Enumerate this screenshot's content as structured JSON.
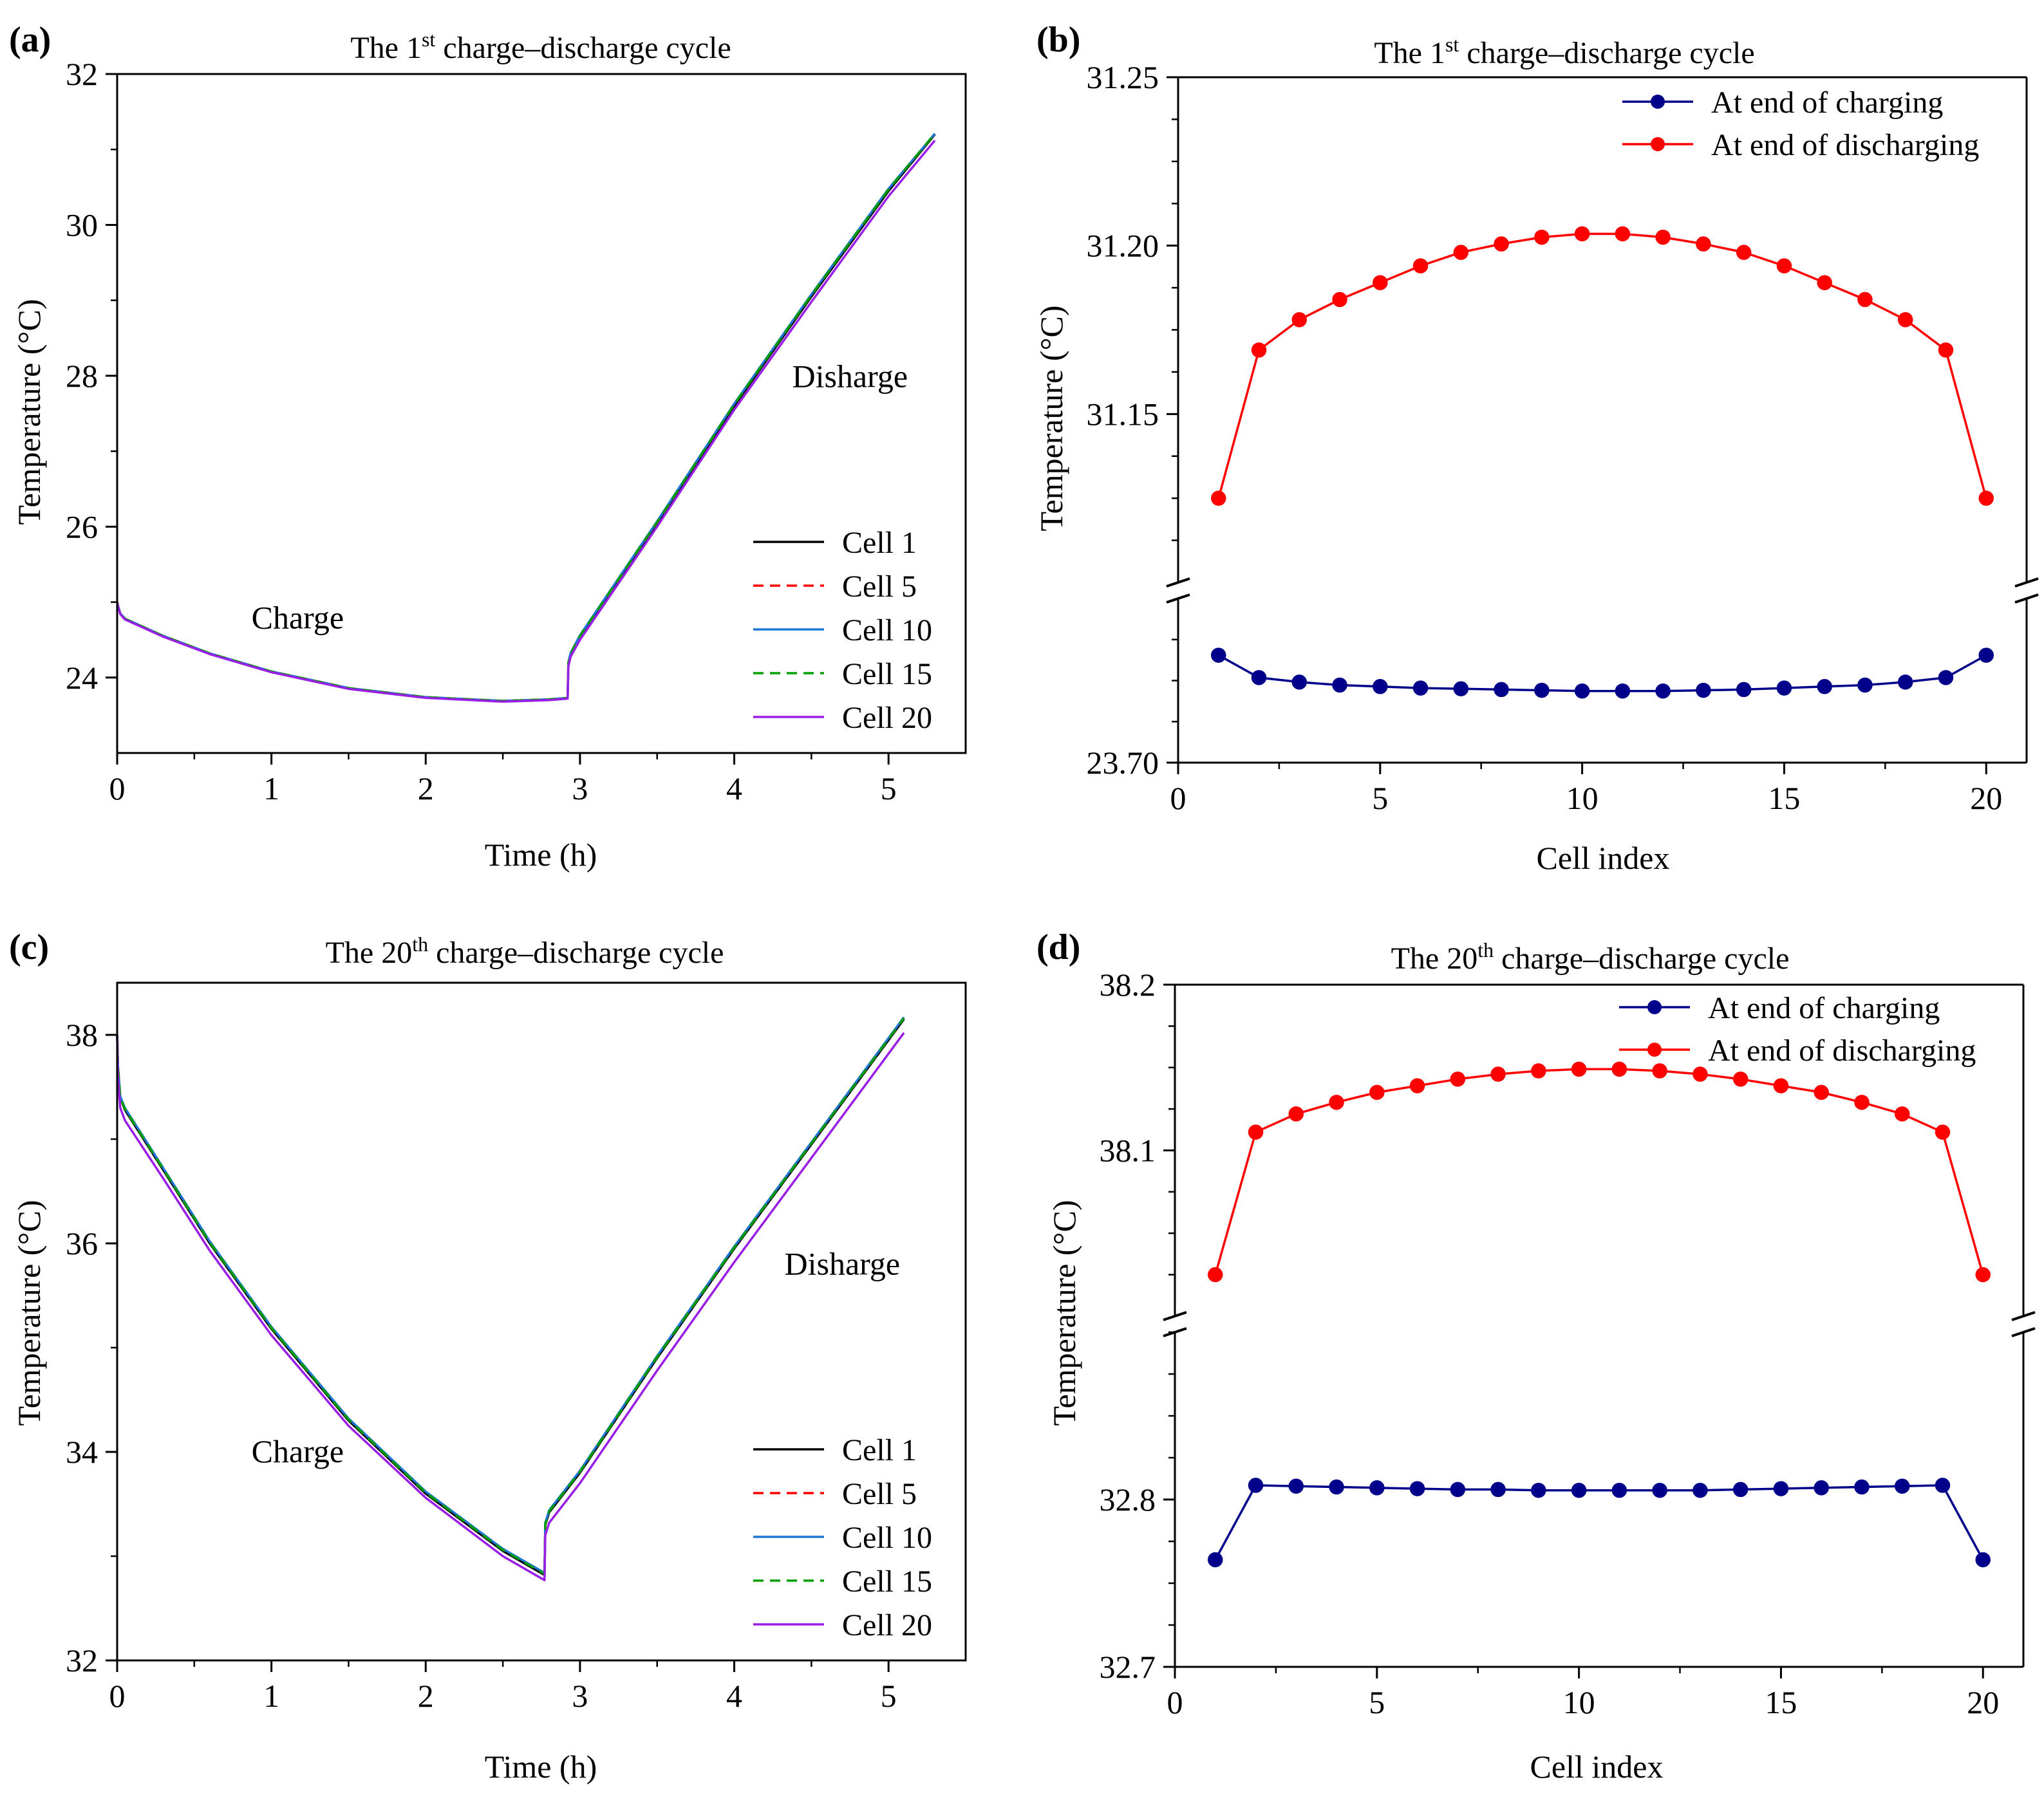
{
  "colors": {
    "cell_1": "#000000",
    "cell_5": "#ff0000",
    "cell_10": "#1f77d4",
    "cell_15": "#00a000",
    "cell_20": "#9b1ee6",
    "charging": "#00008b",
    "discharging": "#ff0000"
  },
  "chart_data": [
    {
      "id": "a",
      "panel_label": "(a)",
      "type": "line",
      "title_parts": [
        "The 1",
        "st",
        " charge–discharge cycle"
      ],
      "xlabel": "Time (h)",
      "ylabel": "Temperature (°C)",
      "xlim": [
        0,
        5.5
      ],
      "ylim": [
        23,
        32
      ],
      "xticks": [
        0,
        1,
        2,
        3,
        4,
        5
      ],
      "yticks": [
        24,
        26,
        28,
        30,
        32
      ],
      "annotations": [
        {
          "text": "Charge",
          "x": 1.17,
          "y": 24.65
        },
        {
          "text": "Disharge",
          "x": 4.75,
          "y": 27.85
        }
      ],
      "legend": [
        "Cell 1",
        "Cell 5",
        "Cell 10",
        "Cell 15",
        "Cell 20"
      ],
      "series": [
        {
          "name": "Cell 1",
          "color_key": "cell_1",
          "dash": "solid",
          "x": [
            0,
            0.005,
            0.02,
            0.05,
            0.3,
            0.6,
            1.0,
            1.5,
            2.0,
            2.5,
            2.8,
            2.92,
            2.925,
            2.94,
            3.0,
            3.5,
            4.0,
            4.5,
            5.0,
            5.3
          ],
          "y": [
            25.0,
            24.95,
            24.85,
            24.78,
            24.55,
            24.32,
            24.08,
            23.86,
            23.74,
            23.69,
            23.71,
            23.73,
            24.2,
            24.32,
            24.55,
            26.05,
            27.6,
            29.05,
            30.45,
            31.2
          ]
        },
        {
          "name": "Cell 5",
          "color_key": "cell_5",
          "dash": "dashed",
          "x": [
            0,
            0.005,
            0.02,
            0.05,
            0.3,
            0.6,
            1.0,
            1.5,
            2.0,
            2.5,
            2.8,
            2.92,
            2.925,
            2.94,
            3.0,
            3.5,
            4.0,
            4.5,
            5.0,
            5.3
          ],
          "y": [
            25.0,
            24.95,
            24.85,
            24.78,
            24.55,
            24.32,
            24.08,
            23.86,
            23.74,
            23.69,
            23.71,
            23.73,
            24.2,
            24.32,
            24.55,
            26.06,
            27.62,
            29.07,
            30.47,
            31.21
          ]
        },
        {
          "name": "Cell 10",
          "color_key": "cell_10",
          "dash": "solid",
          "x": [
            0,
            0.005,
            0.02,
            0.05,
            0.3,
            0.6,
            1.0,
            1.5,
            2.0,
            2.5,
            2.8,
            2.92,
            2.925,
            2.94,
            3.0,
            3.5,
            4.0,
            4.5,
            5.0,
            5.3
          ],
          "y": [
            25.0,
            24.95,
            24.85,
            24.78,
            24.55,
            24.32,
            24.08,
            23.86,
            23.74,
            23.69,
            23.71,
            23.73,
            24.2,
            24.33,
            24.56,
            26.07,
            27.63,
            29.08,
            30.48,
            31.21
          ]
        },
        {
          "name": "Cell 15",
          "color_key": "cell_15",
          "dash": "dashed",
          "x": [
            0,
            0.005,
            0.02,
            0.05,
            0.3,
            0.6,
            1.0,
            1.5,
            2.0,
            2.5,
            2.8,
            2.92,
            2.925,
            2.94,
            3.0,
            3.5,
            4.0,
            4.5,
            5.0,
            5.3
          ],
          "y": [
            25.0,
            24.95,
            24.85,
            24.78,
            24.55,
            24.32,
            24.08,
            23.86,
            23.74,
            23.69,
            23.71,
            23.73,
            24.2,
            24.32,
            24.55,
            26.06,
            27.62,
            29.07,
            30.47,
            31.21
          ]
        },
        {
          "name": "Cell 20",
          "color_key": "cell_20",
          "dash": "solid",
          "x": [
            0,
            0.005,
            0.02,
            0.05,
            0.3,
            0.6,
            1.0,
            1.5,
            2.0,
            2.5,
            2.8,
            2.92,
            2.925,
            2.94,
            3.0,
            3.5,
            4.0,
            4.5,
            5.0,
            5.3
          ],
          "y": [
            25.0,
            24.95,
            24.84,
            24.77,
            24.54,
            24.31,
            24.07,
            23.85,
            23.73,
            23.68,
            23.7,
            23.72,
            24.15,
            24.28,
            24.5,
            26.0,
            27.55,
            28.98,
            30.38,
            31.12
          ]
        }
      ]
    },
    {
      "id": "b",
      "panel_label": "(b)",
      "type": "line",
      "broken_axis": true,
      "title_parts": [
        "The 1",
        "st",
        " charge–discharge cycle"
      ],
      "xlabel": "Cell index",
      "ylabel": "Temperature (°C)",
      "xlim": [
        0,
        21
      ],
      "xticks": [
        0,
        5,
        10,
        15,
        20
      ],
      "y_segments": [
        {
          "range": [
            23.7,
            23.81
          ],
          "ticks": [
            23.7
          ],
          "tick_labels": [
            "23.70"
          ]
        },
        {
          "range": [
            31.1,
            31.25
          ],
          "ticks": [
            31.15,
            31.2,
            31.25
          ],
          "tick_labels": [
            "31.15",
            "31.20",
            "31.25"
          ]
        }
      ],
      "legend": [
        "At end of charging",
        "At end of discharging"
      ],
      "x": [
        1,
        2,
        3,
        4,
        5,
        6,
        7,
        8,
        9,
        10,
        11,
        12,
        13,
        14,
        15,
        16,
        17,
        18,
        19,
        20
      ],
      "series": [
        {
          "name": "At end of charging",
          "color_key": "charging",
          "segment": 0,
          "values": [
            23.772,
            23.757,
            23.754,
            23.752,
            23.751,
            23.75,
            23.7495,
            23.749,
            23.7485,
            23.748,
            23.748,
            23.748,
            23.7485,
            23.749,
            23.75,
            23.751,
            23.752,
            23.754,
            23.757,
            23.772
          ]
        },
        {
          "name": "At end of discharging",
          "color_key": "discharging",
          "segment": 1,
          "values": [
            31.125,
            31.169,
            31.178,
            31.184,
            31.189,
            31.194,
            31.198,
            31.2005,
            31.2025,
            31.2035,
            31.2035,
            31.2025,
            31.2005,
            31.198,
            31.194,
            31.189,
            31.184,
            31.178,
            31.169,
            31.125
          ]
        }
      ]
    },
    {
      "id": "c",
      "panel_label": "(c)",
      "type": "line",
      "title_parts": [
        "The 20",
        "th",
        " charge–discharge cycle"
      ],
      "xlabel": "Time (h)",
      "ylabel": "Temperature (°C)",
      "xlim": [
        0,
        5.5
      ],
      "ylim": [
        32,
        38.5
      ],
      "xticks": [
        0,
        1,
        2,
        3,
        4,
        5
      ],
      "yticks": [
        32,
        34,
        36,
        38
      ],
      "annotations": [
        {
          "text": "Charge",
          "x": 1.17,
          "y": 33.9
        },
        {
          "text": "Disharge",
          "x": 4.7,
          "y": 35.7
        }
      ],
      "legend": [
        "Cell 1",
        "Cell 5",
        "Cell 10",
        "Cell 15",
        "Cell 20"
      ],
      "series": [
        {
          "name": "Cell 1",
          "color_key": "cell_1",
          "dash": "solid",
          "x": [
            0,
            0.005,
            0.02,
            0.05,
            0.3,
            0.6,
            1.0,
            1.5,
            2.0,
            2.5,
            2.77,
            2.775,
            2.8,
            3.0,
            3.5,
            4.0,
            4.5,
            5.0,
            5.1
          ],
          "y": [
            38.0,
            37.7,
            37.4,
            37.28,
            36.7,
            36.0,
            35.18,
            34.3,
            33.6,
            33.05,
            32.82,
            33.3,
            33.42,
            33.8,
            34.9,
            35.95,
            36.95,
            37.95,
            38.15
          ]
        },
        {
          "name": "Cell 5",
          "color_key": "cell_5",
          "dash": "dashed",
          "x": [
            0,
            0.005,
            0.02,
            0.05,
            0.3,
            0.6,
            1.0,
            1.5,
            2.0,
            2.5,
            2.77,
            2.775,
            2.8,
            3.0,
            3.5,
            4.0,
            4.5,
            5.0,
            5.1
          ],
          "y": [
            38.0,
            37.7,
            37.4,
            37.29,
            36.71,
            36.01,
            35.19,
            34.31,
            33.61,
            33.06,
            32.83,
            33.31,
            33.43,
            33.81,
            34.91,
            35.96,
            36.96,
            37.96,
            38.16
          ]
        },
        {
          "name": "Cell 10",
          "color_key": "cell_10",
          "dash": "solid",
          "x": [
            0,
            0.005,
            0.02,
            0.05,
            0.3,
            0.6,
            1.0,
            1.5,
            2.0,
            2.5,
            2.77,
            2.775,
            2.8,
            3.0,
            3.5,
            4.0,
            4.5,
            5.0,
            5.1
          ],
          "y": [
            38.0,
            37.7,
            37.41,
            37.3,
            36.72,
            36.02,
            35.2,
            34.32,
            33.62,
            33.07,
            32.84,
            33.32,
            33.44,
            33.82,
            34.92,
            35.97,
            36.97,
            37.97,
            38.17
          ]
        },
        {
          "name": "Cell 15",
          "color_key": "cell_15",
          "dash": "dashed",
          "x": [
            0,
            0.005,
            0.02,
            0.05,
            0.3,
            0.6,
            1.0,
            1.5,
            2.0,
            2.5,
            2.77,
            2.775,
            2.8,
            3.0,
            3.5,
            4.0,
            4.5,
            5.0,
            5.1
          ],
          "y": [
            38.0,
            37.7,
            37.4,
            37.29,
            36.71,
            36.01,
            35.19,
            34.31,
            33.61,
            33.06,
            32.83,
            33.31,
            33.43,
            33.81,
            34.91,
            35.96,
            36.96,
            37.96,
            38.16
          ]
        },
        {
          "name": "Cell 20",
          "color_key": "cell_20",
          "dash": "solid",
          "x": [
            0,
            0.005,
            0.02,
            0.05,
            0.3,
            0.6,
            1.0,
            1.5,
            2.0,
            2.5,
            2.77,
            2.775,
            2.8,
            3.0,
            3.5,
            4.0,
            4.5,
            5.0,
            5.1
          ],
          "y": [
            38.0,
            37.6,
            37.3,
            37.18,
            36.62,
            35.93,
            35.12,
            34.25,
            33.56,
            33.0,
            32.77,
            33.2,
            33.32,
            33.7,
            34.78,
            35.82,
            36.82,
            37.82,
            38.02
          ]
        }
      ]
    },
    {
      "id": "d",
      "panel_label": "(d)",
      "type": "line",
      "broken_axis": true,
      "title_parts": [
        "The 20",
        "th",
        " charge–discharge cycle"
      ],
      "xlabel": "Cell index",
      "ylabel": "Temperature (°C)",
      "xlim": [
        0,
        21
      ],
      "xticks": [
        0,
        5,
        10,
        15,
        20
      ],
      "y_segments": [
        {
          "range": [
            32.7,
            32.9
          ],
          "ticks": [
            32.7,
            32.8
          ],
          "tick_labels": [
            "32.7",
            "32.8"
          ]
        },
        {
          "range": [
            38.0,
            38.2
          ],
          "ticks": [
            38.1,
            38.2
          ],
          "tick_labels": [
            "38.1",
            "38.2"
          ]
        }
      ],
      "legend": [
        "At end of charging",
        "At end of discharging"
      ],
      "x": [
        1,
        2,
        3,
        4,
        5,
        6,
        7,
        8,
        9,
        10,
        11,
        12,
        13,
        14,
        15,
        16,
        17,
        18,
        19,
        20
      ],
      "series": [
        {
          "name": "At end of charging",
          "color_key": "charging",
          "segment": 0,
          "values": [
            32.764,
            32.8085,
            32.808,
            32.8075,
            32.807,
            32.8065,
            32.806,
            32.806,
            32.8055,
            32.8055,
            32.8055,
            32.8055,
            32.8055,
            32.806,
            32.8065,
            32.807,
            32.8075,
            32.808,
            32.8085,
            32.764
          ]
        },
        {
          "name": "At end of discharging",
          "color_key": "discharging",
          "segment": 1,
          "values": [
            38.025,
            38.111,
            38.122,
            38.129,
            38.135,
            38.139,
            38.143,
            38.146,
            38.148,
            38.149,
            38.149,
            38.148,
            38.146,
            38.143,
            38.139,
            38.135,
            38.129,
            38.122,
            38.111,
            38.025
          ]
        }
      ]
    }
  ]
}
